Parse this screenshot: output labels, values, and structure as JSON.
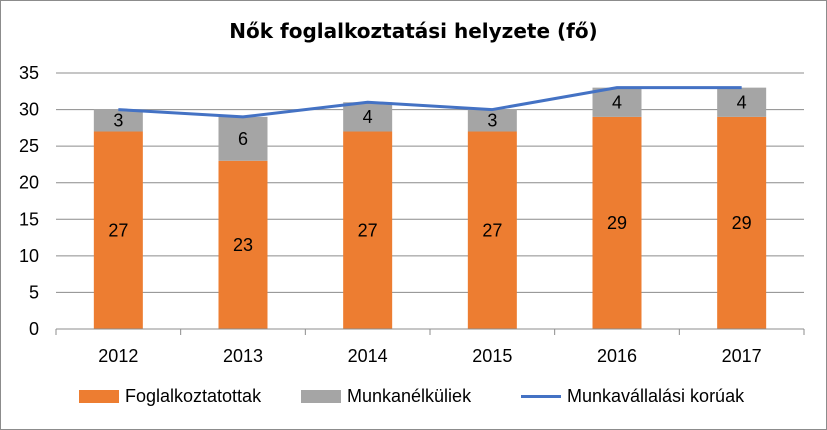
{
  "chart_data": {
    "type": "bar",
    "title": "Nők foglalkoztatási helyzete (fő)",
    "categories": [
      "2012",
      "2013",
      "2014",
      "2015",
      "2016",
      "2017"
    ],
    "ylim": [
      0,
      35
    ],
    "yticks": [
      "0",
      "5",
      "10",
      "15",
      "20",
      "25",
      "30",
      "35"
    ],
    "grid": true,
    "legend_position": "bottom",
    "series": [
      {
        "name": "Foglalkoztatottak",
        "kind": "stacked-bar",
        "color": "#ed7d31",
        "values": [
          27,
          23,
          27,
          27,
          29,
          29
        ]
      },
      {
        "name": "Munkanélküliek",
        "kind": "stacked-bar",
        "color": "#a5a5a5",
        "values": [
          3,
          6,
          4,
          3,
          4,
          4
        ]
      },
      {
        "name": "Munkavállalási korúak",
        "kind": "line",
        "color": "#4472c4",
        "values": [
          30,
          29,
          31,
          30,
          33,
          33
        ]
      }
    ]
  }
}
